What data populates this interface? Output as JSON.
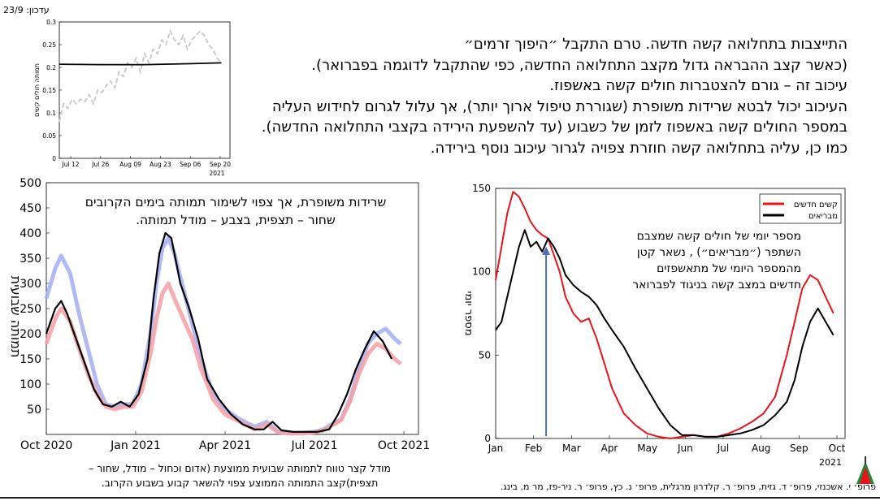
{
  "update_label": "עדכון: 23/9",
  "top_text": {
    "lines": [
      "התייצבות בתחלואה קשה חדשה. טרם התקבל ״היפוך זרמים״",
      "(כאשר קצב ההבראה גדול מקצב התחלואה החדשה, כפי שהתקבל לדוגמה בפברואר).",
      "עיכוב זה – גורם להצטברות חולים קשה באשפוז.",
      "העיכוב יכול לבטא שרידות משופרת (שגוררת טיפול ארוך יותר),  אך עלול לגרום לחידוש העליה",
      "במספר החולים קשה באשפוז לזמן של כשבוע (עד להשפעת הירידה בקצבי התחלואה החדשה).",
      "כמו כן, עליה בתחלואה קשה חוזרת צפויה לגרור עיכוב נוסף בירידה."
    ]
  },
  "footer": {
    "authors": "פרופ׳ י. אשכנזי, פרופ׳ ד. גזית, פרופ׳ ר. קלדרון מרגלית, פרופ׳ נ. כץ, פרופ׳ ר. ניר-פז, מר מ. בינג."
  },
  "colors": {
    "red": "#e8141c",
    "black": "#000000",
    "blue_light": "#a9b3f4",
    "red_light": "#f5a3a8",
    "gray_dash": "#c8c8c8",
    "arrow_blue": "#4a6fb0"
  },
  "chart_data": [
    {
      "id": "top-left",
      "type": "line",
      "xlabel": "",
      "ylabel": "תמותה חולים קשים",
      "x_ticks": [
        "Jul 12",
        "Jul 26",
        "Aug 09",
        "Aug 23",
        "Sep 06",
        "Sep 20"
      ],
      "x_year": "2021",
      "y_ticks": [
        0,
        0.05,
        0.1,
        0.15,
        0.2,
        0.25,
        0.3
      ],
      "xlim": [
        0,
        80
      ],
      "ylim": [
        0,
        0.3
      ],
      "series": [
        {
          "style": "dashed-gray",
          "x": [
            0,
            2,
            4,
            6,
            8,
            10,
            12,
            14,
            16,
            18,
            20,
            22,
            24,
            26,
            28,
            30,
            32,
            34,
            36,
            38,
            40,
            42,
            44,
            46,
            48,
            50,
            52,
            54,
            56,
            58,
            60,
            62,
            64,
            66,
            68,
            70,
            72,
            74,
            76
          ],
          "y": [
            0.08,
            0.12,
            0.11,
            0.13,
            0.12,
            0.13,
            0.125,
            0.14,
            0.12,
            0.15,
            0.145,
            0.16,
            0.17,
            0.155,
            0.19,
            0.18,
            0.21,
            0.2,
            0.22,
            0.19,
            0.23,
            0.21,
            0.24,
            0.23,
            0.26,
            0.25,
            0.28,
            0.26,
            0.25,
            0.27,
            0.24,
            0.26,
            0.27,
            0.28,
            0.27,
            0.25,
            0.24,
            0.22,
            0.21
          ]
        },
        {
          "style": "solid-black",
          "x": [
            0,
            20,
            40,
            60,
            76
          ],
          "y": [
            0.207,
            0.206,
            0.206,
            0.208,
            0.21
          ]
        }
      ]
    },
    {
      "id": "bottom-left",
      "type": "line",
      "ylabel": "תמותה שבועית",
      "x_ticks": [
        "Oct 2020",
        "Jan 2021",
        "Apr 2021",
        "Jul 2021",
        "Oct 2021"
      ],
      "y_ticks": [
        50,
        100,
        150,
        200,
        250,
        300,
        350,
        400,
        450,
        500
      ],
      "xlim": [
        0,
        12.5
      ],
      "ylim": [
        0,
        500
      ],
      "annotation": [
        "שרידות משופרת, אך צפוי לשימור תמותה בימים הקרובים",
        "שחור – תצפית, בצבע – מודל תמותה."
      ],
      "caption": [
        "מודל קצר טווח לתמותה שבועית ממוצעת (אדום וכחול – מודל, שחור –",
        "תצפית)קצב התמותה הממוצע צפוי להשאר קבוע בשבוע הקרוב."
      ],
      "series": [
        {
          "style": "blue-model",
          "x": [
            0,
            0.3,
            0.5,
            0.8,
            1.1,
            1.4,
            1.7,
            2.0,
            2.3,
            2.6,
            2.9,
            3.2,
            3.5,
            3.7,
            3.9,
            4.1,
            4.3,
            4.6,
            4.9,
            5.2,
            5.6,
            6.0,
            6.5,
            7.0,
            7.4,
            7.8,
            8.2,
            8.6,
            9.0,
            9.3,
            9.6,
            9.9,
            10.2,
            10.5,
            10.8,
            11.1,
            11.4,
            11.7,
            11.9
          ],
          "y": [
            270,
            330,
            355,
            320,
            240,
            170,
            100,
            60,
            55,
            60,
            60,
            100,
            200,
            300,
            370,
            390,
            360,
            290,
            220,
            150,
            80,
            50,
            30,
            15,
            25,
            5,
            2,
            3,
            5,
            10,
            20,
            30,
            70,
            130,
            180,
            200,
            210,
            190,
            180
          ]
        },
        {
          "style": "red-model",
          "x": [
            0,
            0.3,
            0.5,
            0.8,
            1.1,
            1.4,
            1.7,
            2.0,
            2.3,
            2.6,
            2.9,
            3.2,
            3.5,
            3.7,
            3.9,
            4.1,
            4.3,
            4.6,
            4.9,
            5.2,
            5.6,
            6.0,
            6.5,
            7.0,
            7.4,
            7.8,
            8.2,
            8.6,
            9.0,
            9.3,
            9.6,
            9.9,
            10.2,
            10.5,
            10.8,
            11.1,
            11.4,
            11.7,
            11.9
          ],
          "y": [
            180,
            230,
            250,
            225,
            170,
            120,
            80,
            55,
            50,
            55,
            55,
            85,
            160,
            230,
            280,
            300,
            270,
            230,
            190,
            130,
            70,
            40,
            25,
            10,
            20,
            4,
            2,
            2,
            4,
            8,
            18,
            28,
            65,
            120,
            160,
            180,
            170,
            150,
            140
          ]
        },
        {
          "style": "black-obs",
          "x": [
            0,
            0.3,
            0.5,
            0.7,
            1.0,
            1.3,
            1.6,
            1.9,
            2.2,
            2.5,
            2.8,
            3.1,
            3.4,
            3.6,
            3.8,
            4.0,
            4.2,
            4.5,
            4.8,
            5.1,
            5.4,
            5.8,
            6.2,
            6.6,
            7.0,
            7.3,
            7.6,
            7.9,
            8.3,
            8.7,
            9.1,
            9.5,
            9.8,
            10.1,
            10.4,
            10.7,
            11.0,
            11.3,
            11.6
          ],
          "y": [
            200,
            250,
            265,
            240,
            190,
            140,
            90,
            60,
            55,
            65,
            55,
            80,
            150,
            270,
            360,
            400,
            390,
            300,
            250,
            190,
            110,
            70,
            40,
            20,
            10,
            10,
            25,
            8,
            5,
            5,
            5,
            10,
            40,
            80,
            130,
            170,
            205,
            185,
            150
          ]
        }
      ]
    },
    {
      "id": "bottom-right",
      "type": "line",
      "ylabel": "מספר יומי",
      "x_ticks": [
        "Jan",
        "Feb",
        "Mar",
        "Apr",
        "May",
        "Jun",
        "Jul",
        "Aug",
        "Sep",
        "Oct"
      ],
      "x_year": "2021",
      "y_ticks": [
        0,
        50,
        100,
        150
      ],
      "xlim": [
        0,
        9
      ],
      "ylim": [
        0,
        150
      ],
      "legend": {
        "placement": "top-right",
        "entries": [
          "קשים חדשים",
          "מבריאים"
        ]
      },
      "annotation": [
        "מספר יומי של  חולים קשה שמצבם",
        "השתפר (״מבריאים״) , נשאר קטן",
        "מהמספר היומי של מתאשפזים",
        "חדשים במצב קשה  בניגוד לפברואר"
      ],
      "arrow": {
        "x": 1.3,
        "from_y": 0,
        "to_y": 115
      },
      "series": [
        {
          "name": "קשים חדשים",
          "style": "red",
          "x": [
            0,
            0.15,
            0.3,
            0.45,
            0.6,
            0.75,
            0.9,
            1.05,
            1.2,
            1.35,
            1.5,
            1.65,
            1.8,
            2.0,
            2.2,
            2.4,
            2.6,
            2.8,
            3.0,
            3.3,
            3.6,
            3.9,
            4.2,
            4.5,
            4.8,
            5.1,
            5.4,
            5.7,
            6.0,
            6.3,
            6.6,
            6.9,
            7.2,
            7.5,
            7.7,
            7.9,
            8.1,
            8.3,
            8.5,
            8.7
          ],
          "y": [
            95,
            115,
            135,
            148,
            145,
            138,
            130,
            125,
            122,
            120,
            110,
            100,
            85,
            75,
            70,
            72,
            60,
            45,
            30,
            15,
            8,
            3,
            1,
            0,
            1,
            2,
            1,
            1,
            3,
            6,
            10,
            15,
            25,
            50,
            70,
            90,
            98,
            95,
            85,
            75
          ]
        },
        {
          "name": "מבריאים",
          "style": "black",
          "x": [
            0,
            0.15,
            0.3,
            0.45,
            0.6,
            0.75,
            0.9,
            1.05,
            1.2,
            1.35,
            1.5,
            1.65,
            1.8,
            2.0,
            2.2,
            2.4,
            2.6,
            2.8,
            3.0,
            3.3,
            3.6,
            3.9,
            4.2,
            4.5,
            4.8,
            5.1,
            5.4,
            5.7,
            6.0,
            6.3,
            6.6,
            6.9,
            7.2,
            7.5,
            7.7,
            7.9,
            8.1,
            8.3,
            8.5,
            8.7
          ],
          "y": [
            65,
            70,
            85,
            100,
            115,
            125,
            115,
            118,
            112,
            120,
            115,
            108,
            98,
            92,
            88,
            85,
            80,
            72,
            65,
            55,
            42,
            30,
            18,
            8,
            2,
            2,
            1,
            1,
            2,
            3,
            5,
            8,
            14,
            22,
            35,
            55,
            70,
            78,
            70,
            62
          ]
        }
      ]
    }
  ]
}
